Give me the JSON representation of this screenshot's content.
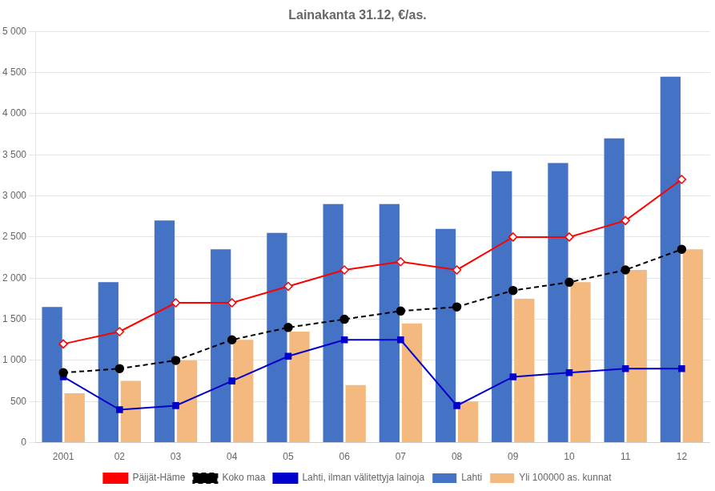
{
  "chart_data": {
    "type": "bar",
    "title": "Lainakanta 31.12, €/as.",
    "categories": [
      "2001",
      "02",
      "03",
      "04",
      "05",
      "06",
      "07",
      "08",
      "09",
      "10",
      "11",
      "12"
    ],
    "series": [
      {
        "name": "Lahti",
        "type": "bar",
        "color": "#4472C4",
        "values": [
          1650,
          1950,
          2700,
          2350,
          2550,
          2900,
          2900,
          2600,
          3300,
          3400,
          3700,
          4450
        ]
      },
      {
        "name": "Yli 100000 as. kunnat",
        "type": "bar",
        "color": "#F4B97E",
        "values": [
          600,
          750,
          1000,
          1250,
          1350,
          700,
          1450,
          500,
          1750,
          1950,
          2100,
          2350
        ]
      },
      {
        "name": "Päijät-Häme",
        "type": "line",
        "color": "#FF0000",
        "marker": "diamond",
        "line_style": "solid",
        "values": [
          1200,
          1350,
          1700,
          1700,
          1900,
          2100,
          2200,
          2100,
          2500,
          2500,
          2700,
          3200
        ]
      },
      {
        "name": "Koko maa",
        "type": "line",
        "color": "#000000",
        "marker": "circle",
        "line_style": "dashed",
        "values": [
          850,
          900,
          1000,
          1250,
          1400,
          1500,
          1600,
          1650,
          1850,
          1950,
          2100,
          2350
        ]
      },
      {
        "name": "Lahti, ilman välitettyja lainoja",
        "type": "line",
        "color": "#0000CC",
        "marker": "square",
        "line_style": "solid",
        "values": [
          800,
          400,
          450,
          750,
          1050,
          1250,
          1250,
          450,
          800,
          850,
          900,
          900
        ]
      }
    ],
    "ylim": [
      0,
      5000
    ],
    "yticks": [
      0,
      500,
      {
        "value": 1000,
        "label": "1 000"
      },
      {
        "value": 1500,
        "label": "1 500"
      },
      {
        "value": 2000,
        "label": "2 000"
      },
      {
        "value": 2500,
        "label": "2 500"
      },
      {
        "value": 3000,
        "label": "3 000"
      },
      {
        "value": 3500,
        "label": "3 500"
      },
      {
        "value": 4000,
        "label": "4 000"
      },
      {
        "value": 4500,
        "label": "4 500"
      },
      {
        "value": 5000,
        "label": "5 000"
      }
    ],
    "grid": true,
    "legend": "bottom"
  }
}
